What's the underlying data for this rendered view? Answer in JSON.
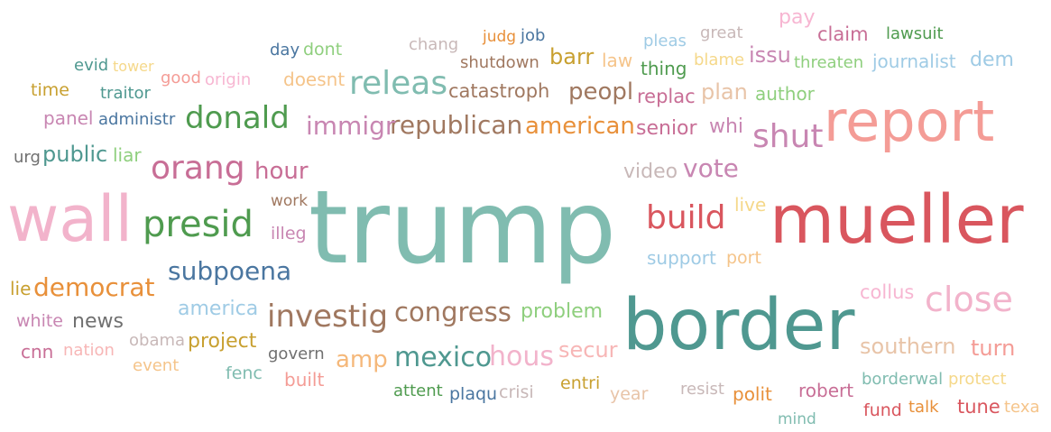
{
  "words": [
    {
      "text": "trump",
      "color": "#80bcb0"
    },
    {
      "text": "mueller",
      "color": "#d9565e"
    },
    {
      "text": "border",
      "color": "#4f9890"
    },
    {
      "text": "wall",
      "color": "#f2b3cb"
    },
    {
      "text": "report",
      "color": "#f49c96"
    },
    {
      "text": "presid",
      "color": "#4f9b4f"
    },
    {
      "text": "donald",
      "color": "#4f9b4f"
    },
    {
      "text": "orang",
      "color": "#c86e96"
    },
    {
      "text": "releas",
      "color": "#80bcb0"
    },
    {
      "text": "build",
      "color": "#d9565e"
    },
    {
      "text": "close",
      "color": "#f2b3cb"
    },
    {
      "text": "investig",
      "color": "#a07860"
    },
    {
      "text": "congress",
      "color": "#a07860"
    },
    {
      "text": "subpoena",
      "color": "#4a76a0"
    },
    {
      "text": "republican",
      "color": "#a07860"
    },
    {
      "text": "immigr",
      "color": "#c886b2"
    },
    {
      "text": "american",
      "color": "#e8903a"
    },
    {
      "text": "democrat",
      "color": "#e8903a"
    },
    {
      "text": "shut",
      "color": "#c886b2"
    },
    {
      "text": "mexico",
      "color": "#4f9890"
    },
    {
      "text": "hous",
      "color": "#f2b3cb"
    },
    {
      "text": "vote",
      "color": "#c886b2"
    },
    {
      "text": "peopl",
      "color": "#a07860"
    },
    {
      "text": "hour",
      "color": "#c86e96"
    },
    {
      "text": "southern",
      "color": "#e8c4a8"
    },
    {
      "text": "amp",
      "color": "#f5b87a"
    },
    {
      "text": "catastroph",
      "color": "#a07860"
    },
    {
      "text": "public",
      "color": "#4f9890"
    },
    {
      "text": "plan",
      "color": "#e8c4a8"
    },
    {
      "text": "news",
      "color": "#707070"
    },
    {
      "text": "senior",
      "color": "#c86e96"
    },
    {
      "text": "issu",
      "color": "#c886b2"
    },
    {
      "text": "turn",
      "color": "#f49c96"
    },
    {
      "text": "whi",
      "color": "#c886b2"
    },
    {
      "text": "problem",
      "color": "#8fcf7e"
    },
    {
      "text": "america",
      "color": "#9fcbe5"
    },
    {
      "text": "project",
      "color": "#c8a030"
    },
    {
      "text": "secur",
      "color": "#f7b6b6"
    },
    {
      "text": "collus",
      "color": "#f7b6d2"
    },
    {
      "text": "barr",
      "color": "#c8a030"
    },
    {
      "text": "support",
      "color": "#9fcbe5"
    },
    {
      "text": "video",
      "color": "#c8b8b8"
    },
    {
      "text": "replac",
      "color": "#c86e96"
    },
    {
      "text": "thing",
      "color": "#4f9b4f"
    },
    {
      "text": "claim",
      "color": "#c86e96"
    },
    {
      "text": "pay",
      "color": "#f7b6d2"
    },
    {
      "text": "dem",
      "color": "#9fcbe5"
    },
    {
      "text": "journalist",
      "color": "#9fcbe5"
    },
    {
      "text": "author",
      "color": "#8fcf7e"
    },
    {
      "text": "shutdown",
      "color": "#a07860"
    },
    {
      "text": "doesnt",
      "color": "#f5c48a"
    },
    {
      "text": "panel",
      "color": "#c886b2"
    },
    {
      "text": "administr",
      "color": "#4a76a0"
    },
    {
      "text": "liar",
      "color": "#8fcf7e"
    },
    {
      "text": "urg",
      "color": "#707070"
    },
    {
      "text": "lie",
      "color": "#c8a030"
    },
    {
      "text": "white",
      "color": "#c886b2"
    },
    {
      "text": "cnn",
      "color": "#c86e96"
    },
    {
      "text": "nation",
      "color": "#f7b6b6"
    },
    {
      "text": "obama",
      "color": "#c8b8b8"
    },
    {
      "text": "event",
      "color": "#f5c48a"
    },
    {
      "text": "fenc",
      "color": "#80bcb0"
    },
    {
      "text": "govern",
      "color": "#707070"
    },
    {
      "text": "built",
      "color": "#f49c96"
    },
    {
      "text": "attent",
      "color": "#4f9b4f"
    },
    {
      "text": "plaqu",
      "color": "#4a76a0"
    },
    {
      "text": "crisi",
      "color": "#c8b8b8"
    },
    {
      "text": "entri",
      "color": "#c8a030"
    },
    {
      "text": "year",
      "color": "#e8c4a8"
    },
    {
      "text": "resist",
      "color": "#c8b8b8"
    },
    {
      "text": "polit",
      "color": "#e8903a"
    },
    {
      "text": "robert",
      "color": "#c86e96"
    },
    {
      "text": "borderwal",
      "color": "#80bcb0"
    },
    {
      "text": "protect",
      "color": "#f5d88a"
    },
    {
      "text": "fund",
      "color": "#d9565e"
    },
    {
      "text": "talk",
      "color": "#e8903a"
    },
    {
      "text": "tune",
      "color": "#d9565e"
    },
    {
      "text": "texa",
      "color": "#f5c48a"
    },
    {
      "text": "mind",
      "color": "#80bcb0"
    },
    {
      "text": "port",
      "color": "#f5c48a"
    },
    {
      "text": "live",
      "color": "#f5d88a"
    },
    {
      "text": "work",
      "color": "#a07860"
    },
    {
      "text": "illeg",
      "color": "#c886b2"
    },
    {
      "text": "time",
      "color": "#c8a030"
    },
    {
      "text": "evid",
      "color": "#4f9890"
    },
    {
      "text": "tower",
      "color": "#f5d88a"
    },
    {
      "text": "traitor",
      "color": "#4f9890"
    },
    {
      "text": "good",
      "color": "#f49c96"
    },
    {
      "text": "origin",
      "color": "#f7b6d2"
    },
    {
      "text": "day",
      "color": "#4a76a0"
    },
    {
      "text": "dont",
      "color": "#8fcf7e"
    },
    {
      "text": "chang",
      "color": "#c8b8b8"
    },
    {
      "text": "judg",
      "color": "#e8903a"
    },
    {
      "text": "job",
      "color": "#4a76a0"
    },
    {
      "text": "law",
      "color": "#f5c48a"
    },
    {
      "text": "pleas",
      "color": "#9fcbe5"
    },
    {
      "text": "great",
      "color": "#c8b8b8"
    },
    {
      "text": "blame",
      "color": "#f5d88a"
    },
    {
      "text": "lawsuit",
      "color": "#4f9b4f"
    },
    {
      "text": "threaten",
      "color": "#8fcf7e"
    }
  ]
}
